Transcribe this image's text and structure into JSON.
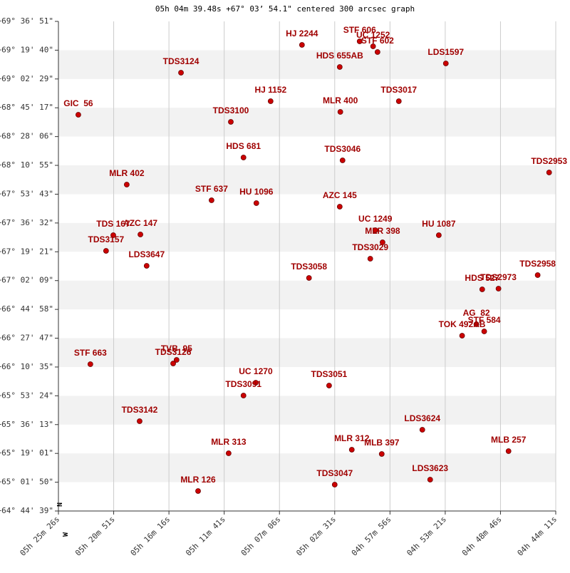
{
  "chart_data": {
    "type": "scatter",
    "title": "05h 04m 39.48s +67° 03’ 54.1\" centered 300 arcsec graph",
    "annotations": [
      "N",
      "W"
    ],
    "color": "#cc0000",
    "label_color": "#a00000",
    "grid": true,
    "xlim": [
      19526,
      17051
    ],
    "ylim": [
      233079,
      250611
    ],
    "xticks": [
      {
        "value": 19526,
        "label": "05h 25m 26s"
      },
      {
        "value": 19251,
        "label": "05h 20m 51s"
      },
      {
        "value": 18976,
        "label": "05h 16m 16s"
      },
      {
        "value": 18701,
        "label": "05h 11m 41s"
      },
      {
        "value": 18426,
        "label": "05h 07m 06s"
      },
      {
        "value": 18151,
        "label": "05h 02m 31s"
      },
      {
        "value": 17876,
        "label": "04h 57m 56s"
      },
      {
        "value": 17601,
        "label": "04h 53m 21s"
      },
      {
        "value": 17326,
        "label": "04h 48m 46s"
      },
      {
        "value": 17051,
        "label": "04h 44m 11s"
      }
    ],
    "yticks": [
      {
        "value": 233079,
        "label": "+64° 44' 39\""
      },
      {
        "value": 234110,
        "label": "+65° 01' 50\""
      },
      {
        "value": 235141,
        "label": "+65° 19' 01\""
      },
      {
        "value": 236173,
        "label": "+65° 36' 13\""
      },
      {
        "value": 237204,
        "label": "+65° 53' 24\""
      },
      {
        "value": 238235,
        "label": "+66° 10' 35\""
      },
      {
        "value": 239267,
        "label": "+66° 27' 47\""
      },
      {
        "value": 240298,
        "label": "+66° 44' 58\""
      },
      {
        "value": 241329,
        "label": "+67° 02' 09\""
      },
      {
        "value": 242361,
        "label": "+67° 19' 21\""
      },
      {
        "value": 243392,
        "label": "+67° 36' 32\""
      },
      {
        "value": 244423,
        "label": "+67° 53' 43\""
      },
      {
        "value": 245455,
        "label": "+68° 10' 55\""
      },
      {
        "value": 246486,
        "label": "+68° 28' 06\""
      },
      {
        "value": 247517,
        "label": "+68° 45' 17\""
      },
      {
        "value": 248549,
        "label": "+69° 02' 29\""
      },
      {
        "value": 249580,
        "label": "+69° 19' 40\""
      },
      {
        "value": 250611,
        "label": "+69° 36' 51\""
      }
    ],
    "point_labels": [
      "HJ 2244",
      "STF 606",
      "UC 1252",
      "STF 602",
      "HDS 655AB",
      "LDS1597",
      "TDS3124",
      "HJ 1152",
      "TDS3017",
      "MLR 400",
      "GIC  56",
      "TDS3100",
      "HDS 681",
      "TDS3046",
      "TDS2953",
      "MLR 402",
      "STF 637",
      "HU 1096",
      "AZC 145",
      "TDS 167",
      "AZC 147",
      "UC 1249",
      "MLR 398",
      "HU 1087",
      "TDS3157",
      "LDS3647",
      "TDS3029",
      "TDS3058",
      "TDS2958",
      "HDS 527",
      "TDS2973",
      "AG  82",
      "STF 584",
      "TOK 492AB",
      "STF 663",
      "TVB  95",
      "TDS3126",
      "UC 1270",
      "TDS3091",
      "TDS3051",
      "TDS3142",
      "LDS3624",
      "MLR 313",
      "MLR 312",
      "MLB 397",
      "MLB 257",
      "LDS3623",
      "TDS3047",
      "MLR 126"
    ],
    "x": [
      18314,
      18027,
      17960,
      17938,
      18126,
      17598,
      18916,
      18470,
      17832,
      18123,
      19427,
      18668,
      18605,
      18112,
      17084,
      19186,
      18764,
      18541,
      18126,
      19253,
      19118,
      17949,
      17913,
      17633,
      19289,
      19087,
      17974,
      18279,
      17141,
      17417,
      17336,
      17446,
      17407,
      17517,
      19367,
      18938,
      18955,
      18544,
      18605,
      18179,
      19122,
      17715,
      18679,
      18066,
      17917,
      17286,
      17676,
      18151,
      18831
    ],
    "values": [
      249769,
      249897,
      249718,
      249514,
      248978,
      249106,
      248774,
      247753,
      247753,
      247370,
      247268,
      247013,
      245737,
      245635,
      245201,
      244767,
      244206,
      244104,
      243976,
      242955,
      242981,
      243134,
      242700,
      242955,
      242394,
      241858,
      242113,
      241424,
      241526,
      241016,
      241041,
      239765,
      239510,
      239357,
      238336,
      238489,
      238362,
      237673,
      237213,
      237571,
      236295,
      235988,
      235146,
      235274,
      235121,
      235223,
      234202,
      234023,
      233794
    ]
  }
}
